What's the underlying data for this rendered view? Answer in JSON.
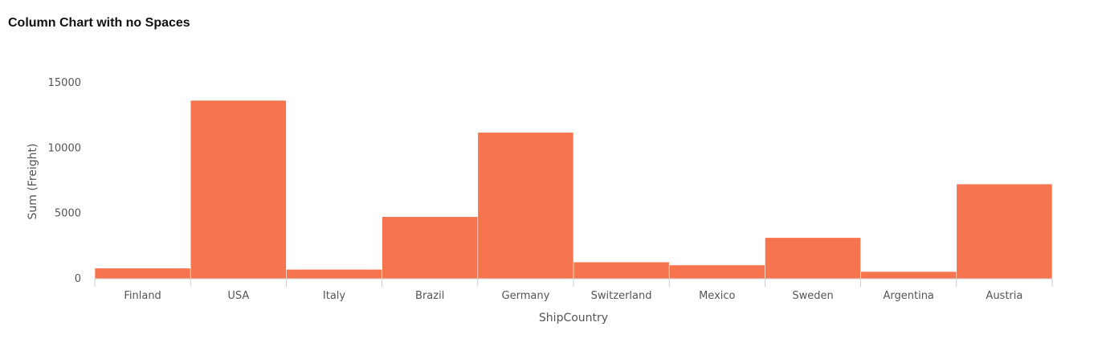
{
  "title": "Column Chart with no Spaces",
  "chart_data": {
    "type": "bar",
    "title": "Column Chart with no Spaces",
    "xlabel": "ShipCountry",
    "ylabel": "Sum (Freight)",
    "categories": [
      "Finland",
      "USA",
      "Italy",
      "Brazil",
      "Germany",
      "Switzerland",
      "Mexico",
      "Sweden",
      "Argentina",
      "Austria"
    ],
    "values": [
      810,
      13650,
      720,
      4750,
      11200,
      1280,
      1050,
      3150,
      550,
      7250
    ],
    "yticks": [
      0,
      5000,
      10000,
      15000
    ],
    "ylim": [
      0,
      15000
    ],
    "grid": false,
    "legend": "none",
    "bar_color": "#f7754e",
    "axis_color": "#cccccc"
  }
}
